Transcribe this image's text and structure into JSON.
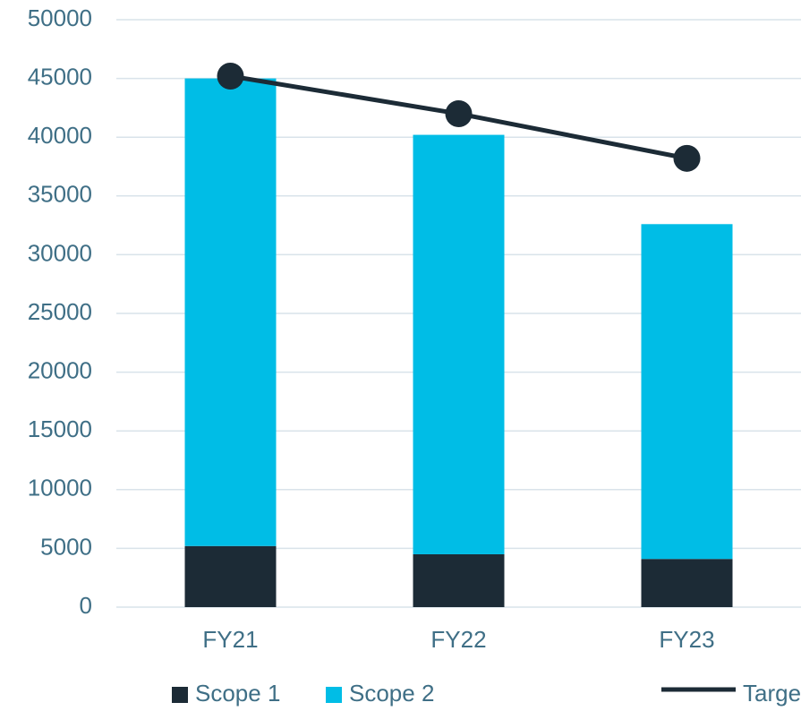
{
  "chart_data": {
    "type": "bar",
    "categories": [
      "FY21",
      "FY22",
      "FY23"
    ],
    "series": [
      {
        "name": "Scope 1",
        "color": "#1c2b36",
        "type": "bar",
        "values": [
          5200,
          4500,
          4100
        ]
      },
      {
        "name": "Scope 2",
        "color": "#00bde6",
        "type": "bar",
        "values": [
          39800,
          35700,
          28500
        ]
      },
      {
        "name": "Target Line",
        "color": "#1c2b36",
        "type": "line",
        "values": [
          45200,
          42000,
          38200
        ]
      }
    ],
    "stacked": true,
    "ylim": [
      0,
      50000
    ],
    "yticks": [
      0,
      5000,
      10000,
      15000,
      20000,
      25000,
      30000,
      35000,
      40000,
      45000,
      50000
    ],
    "grid": true,
    "legend": "bottom"
  }
}
